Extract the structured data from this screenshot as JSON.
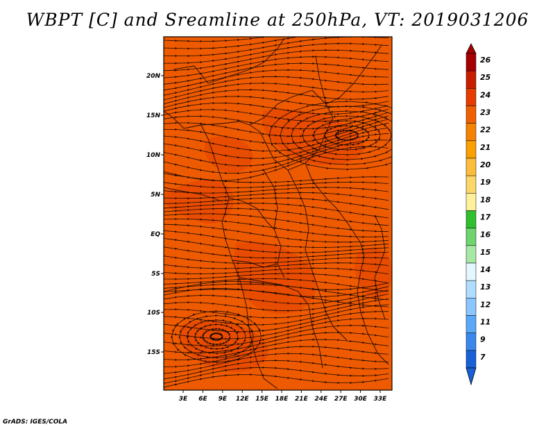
{
  "title": "WBPT [C] and Sreamline at 250hPa, VT: 2019031206",
  "footer": "GrADS: IGES/COLA",
  "map": {
    "lat_labels": [
      "20N",
      "15N",
      "10N",
      "5N",
      "EQ",
      "5S",
      "10S",
      "15S"
    ],
    "lon_labels": [
      "3E",
      "6E",
      "9E",
      "12E",
      "15E",
      "18E",
      "21E",
      "24E",
      "27E",
      "30E",
      "33E"
    ],
    "background_color": "#ee5a00",
    "warm_patch_color": "#e64a00"
  },
  "colorbar": {
    "levels": [
      "26",
      "25",
      "24",
      "23",
      "22",
      "21",
      "20",
      "19",
      "18",
      "17",
      "16",
      "15",
      "14",
      "13",
      "12",
      "11",
      "9",
      "7"
    ],
    "colors": [
      "#a50000",
      "#c81e00",
      "#e63c00",
      "#f06000",
      "#f58200",
      "#faa000",
      "#fcbd3a",
      "#fdd66a",
      "#fff09a",
      "#2fbf2f",
      "#6ed46e",
      "#a6e8a6",
      "#e4f7ff",
      "#b0ddff",
      "#8cc6ff",
      "#5aa8f8",
      "#3a88ee",
      "#1860d8"
    ]
  }
}
